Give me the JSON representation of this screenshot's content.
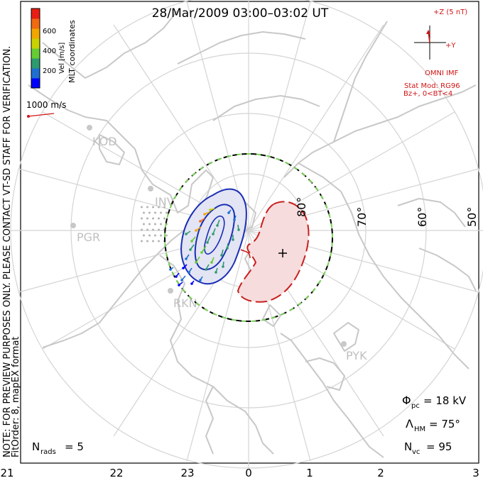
{
  "title": "28/Mar/2009 03:00–03:02 UT",
  "side_note_1": "NOTE: FOR PREVIEW PURPOSES ONLY. PLEASE CONTACT VT-SD STAFF FOR VERIFICATION.",
  "side_note_2": "FitOrder: 8,  mapEX format",
  "coord_label": "MLT coordinates",
  "colorbar": {
    "label": "Vel [m/s]",
    "ticks": [
      "600",
      "400",
      "200"
    ],
    "colors": [
      "#0000ff",
      "#1f6fd0",
      "#2e9a6f",
      "#66cc33",
      "#c9d200",
      "#f2a600",
      "#ef6a10",
      "#e81e14"
    ]
  },
  "scale_vector_label": "1000 m/s",
  "imf": {
    "z_label": "+Z (5 nT)",
    "y_label": "+Y",
    "source": "OMNI IMF",
    "model_line1": "Stat Mod: RG96",
    "model_line2": "Bz+, 0<BT<4",
    "color": "#d21414"
  },
  "lat_labels": [
    "80°",
    "70°",
    "60°",
    "50°"
  ],
  "stations": [
    "KOD",
    "INV",
    "PGR",
    "RKN",
    "PYK"
  ],
  "stats": {
    "phi_sym": "Φ",
    "phi_sub": "pc",
    "phi_val": "= 18 kV",
    "lambda_sym": "Λ",
    "lambda_sub": "HM",
    "lambda_val": "= 75°",
    "nvc_sym": "N",
    "nvc_sub": "vc",
    "nvc_val": "= 95",
    "nrads_sym": "N",
    "nrads_sub": "rads",
    "nrads_val": "= 5"
  },
  "mlt_labels": [
    "21",
    "22",
    "23",
    "0",
    "1",
    "2",
    "3"
  ],
  "colors": {
    "coast": "#c8c8c8",
    "grid": "#d4d4d4",
    "neg_contour": "#1a2fb4",
    "pos_contour": "#c81e1e",
    "neg_fill": "#e3e4f4",
    "pos_fill": "#f6dcdc"
  }
}
